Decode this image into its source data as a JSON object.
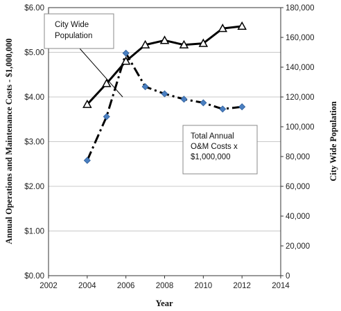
{
  "chart_data": {
    "type": "line",
    "xlabel": "Year",
    "ylabel_left": "Annual Operations and Maintenance Costs - $1,000,000",
    "ylabel_right": "City Wide Population",
    "xlim": [
      2002,
      2014
    ],
    "x_ticks": [
      "2002",
      "2004",
      "2006",
      "2008",
      "2010",
      "2012",
      "2014"
    ],
    "ylim_left": [
      0,
      6
    ],
    "y_left_ticks": [
      "$0.00",
      "$1.00",
      "$2.00",
      "$3.00",
      "$4.00",
      "$5.00",
      "$6.00"
    ],
    "ylim_right": [
      0,
      180000
    ],
    "y_right_ticks": [
      "0",
      "20,000",
      "40,000",
      "60,000",
      "80,000",
      "100,000",
      "120,000",
      "140,000",
      "160,000",
      "180,000"
    ],
    "grid": "horizontal",
    "series": [
      {
        "axis": "right",
        "style": "solid-line-triangle-markers",
        "color": "#000000",
        "x": [
          2004,
          2005,
          2006,
          2007,
          2008,
          2009,
          2010,
          2011,
          2012
        ],
        "values": [
          115000,
          129000,
          144000,
          155000,
          158000,
          155000,
          156000,
          166000,
          167500
        ],
        "callout": [
          "City Wide",
          "Population"
        ]
      },
      {
        "axis": "left",
        "style": "dash-dot-line-diamond-markers",
        "color": "#000000",
        "marker_color": "#4a7fc1",
        "x": [
          2004,
          2005,
          2006,
          2007,
          2008,
          2009,
          2010,
          2011,
          2012
        ],
        "values": [
          2.58,
          3.56,
          4.98,
          4.23,
          4.07,
          3.95,
          3.87,
          3.73,
          3.78
        ],
        "callout": [
          "Total Annual",
          "O&M Costs x",
          "$1,000,000"
        ]
      }
    ]
  }
}
